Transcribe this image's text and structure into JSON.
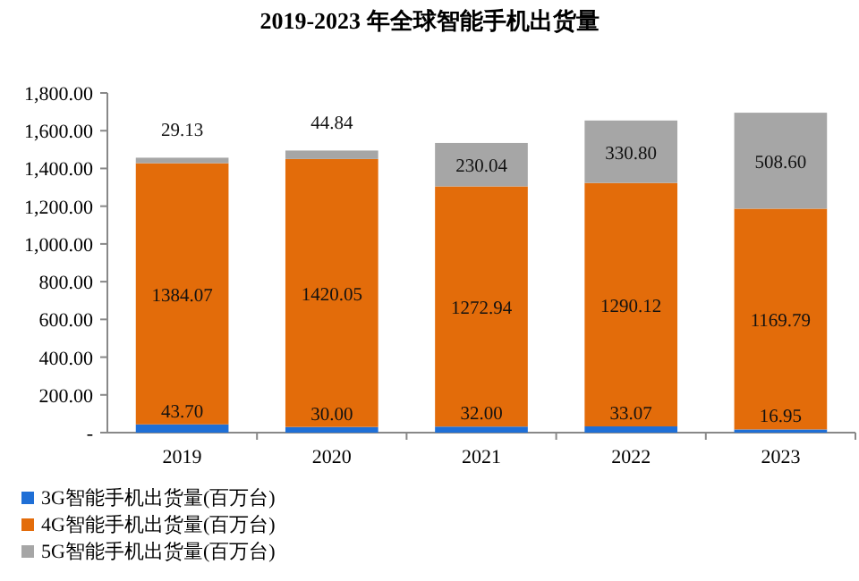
{
  "chart_data": {
    "type": "bar",
    "stacked": true,
    "title": "2019-2023 年全球智能手机出货量",
    "categories": [
      "2019",
      "2020",
      "2021",
      "2022",
      "2023"
    ],
    "series": [
      {
        "name": "3G智能手机出货量(百万台)",
        "color": "#1f6fd6",
        "values": [
          43.7,
          30.0,
          32.0,
          33.07,
          16.95
        ],
        "value_labels": [
          "43.70",
          "30.00",
          "32.00",
          "33.07",
          "16.95"
        ]
      },
      {
        "name": "4G智能手机出货量(百万台)",
        "color": "#e36c0a",
        "values": [
          1384.07,
          1420.05,
          1272.94,
          1290.12,
          1169.79
        ],
        "value_labels": [
          "1384.07",
          "1420.05",
          "1272.94",
          "1290.12",
          "1169.79"
        ]
      },
      {
        "name": "5G智能手机出货量(百万台)",
        "color": "#a6a6a6",
        "values": [
          29.13,
          44.84,
          230.04,
          330.8,
          508.6
        ],
        "value_labels": [
          "29.13",
          "44.84",
          "230.04",
          "330.80",
          "508.60"
        ]
      }
    ],
    "ylim": [
      0,
      1800
    ],
    "yticks": [
      {
        "value": 0,
        "label": "-"
      },
      {
        "value": 200,
        "label": "200.00"
      },
      {
        "value": 400,
        "label": "400.00"
      },
      {
        "value": 600,
        "label": "600.00"
      },
      {
        "value": 800,
        "label": "800.00"
      },
      {
        "value": 1000,
        "label": "1,000.00"
      },
      {
        "value": 1200,
        "label": "1,200.00"
      },
      {
        "value": 1400,
        "label": "1,400.00"
      },
      {
        "value": 1600,
        "label": "1,600.00"
      },
      {
        "value": 1800,
        "label": "1,800.00"
      }
    ],
    "grid": false,
    "legend": "bottom left"
  }
}
